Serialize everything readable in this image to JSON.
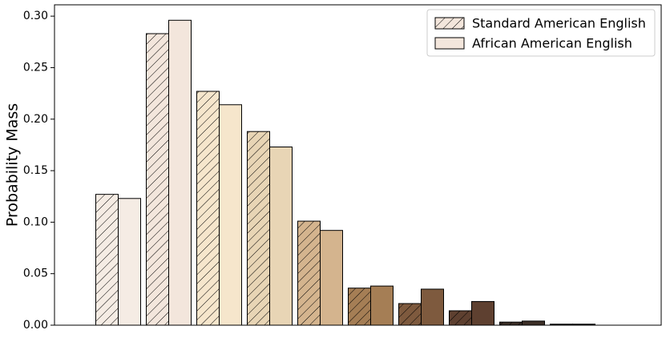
{
  "chart_data": {
    "type": "bar",
    "y_label": "Probability Mass",
    "categories": [
      null,
      null,
      null,
      null,
      null,
      null,
      null,
      null,
      null,
      null
    ],
    "category_colors": [
      "#f5ece4",
      "#f3e6dc",
      "#f6e6cc",
      "#e8d5b5",
      "#d4b48e",
      "#a57e55",
      "#7e5a3e",
      "#5e4030",
      "#3d3028",
      "#262626"
    ],
    "series": [
      {
        "name": "Standard American English",
        "color": "#f3e6dc",
        "hatch": true,
        "values": [
          0.127,
          0.283,
          0.227,
          0.188,
          0.101,
          0.036,
          0.021,
          0.014,
          0.003,
          0.001
        ]
      },
      {
        "name": "African American English",
        "color": "#f3e6dc",
        "hatch": false,
        "values": [
          0.123,
          0.296,
          0.214,
          0.173,
          0.092,
          0.038,
          0.035,
          0.023,
          0.004,
          0.001
        ]
      }
    ],
    "ylim": [
      0,
      0.311
    ],
    "yticks": [
      {
        "value": 0,
        "label": "0.00"
      },
      0.05,
      {
        "value": 0.1,
        "label": "0.10"
      },
      0.15,
      {
        "value": 0.2,
        "label": "0.20"
      },
      0.25,
      {
        "value": 0.3,
        "label": "0.30"
      }
    ],
    "legend": "upper right"
  }
}
